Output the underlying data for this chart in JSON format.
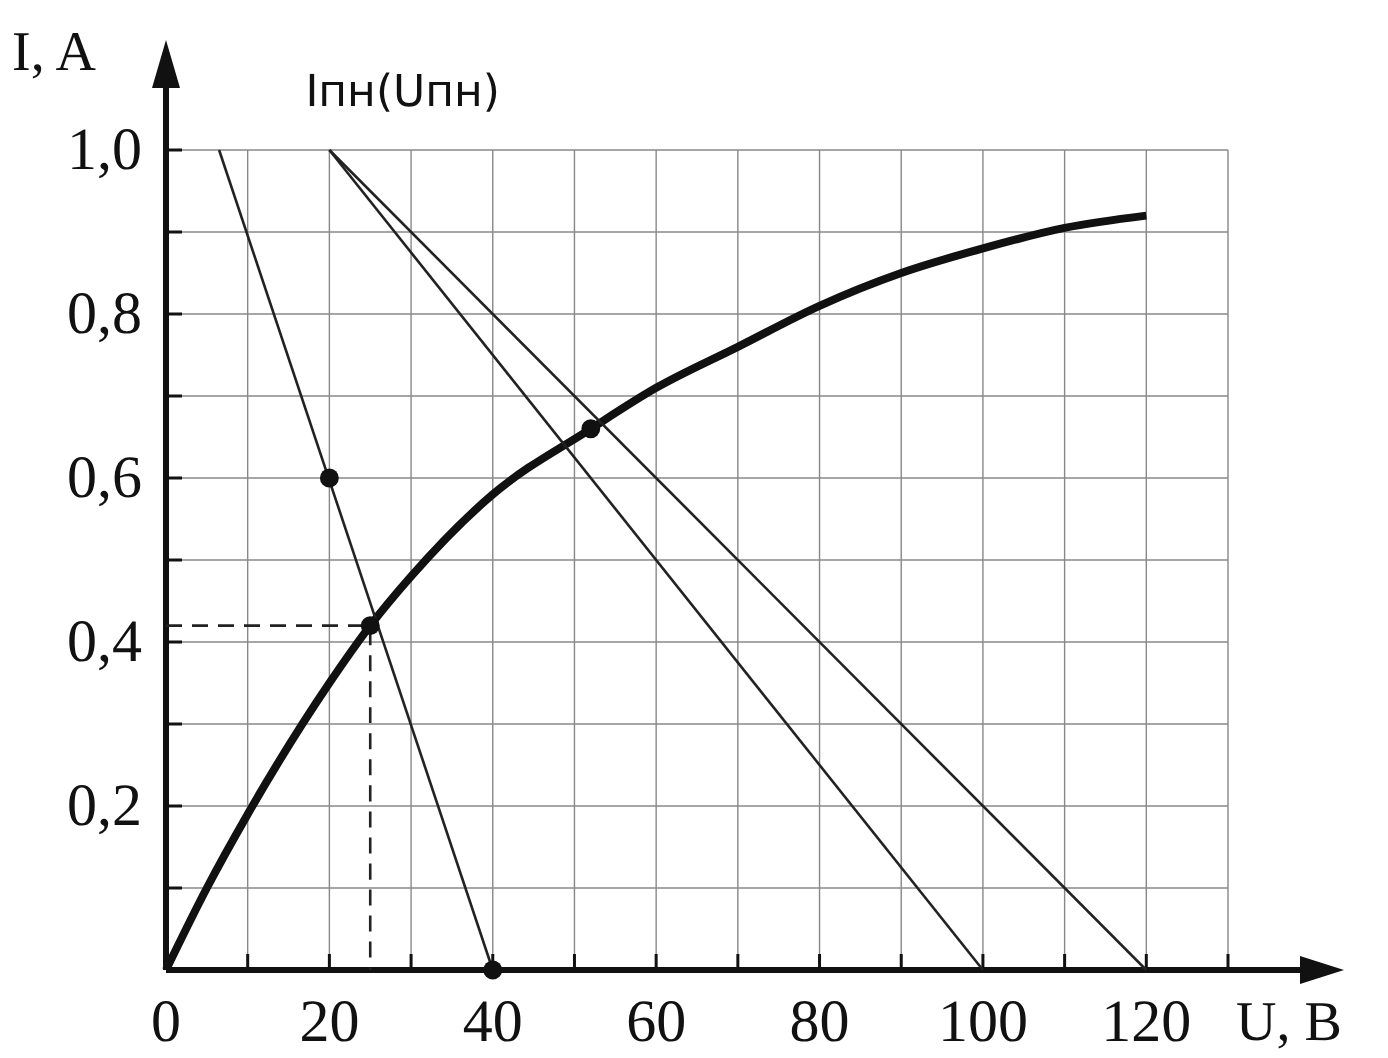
{
  "chart_data": {
    "type": "line",
    "xlabel": "U, B",
    "ylabel": "I, A",
    "xlim": [
      0,
      130
    ],
    "ylim": [
      0,
      1.0
    ],
    "xticks": [
      0,
      {
        "value": 10,
        "label": null
      },
      20,
      {
        "value": 30,
        "label": null
      },
      40,
      {
        "value": 50,
        "label": null
      },
      60,
      {
        "value": 70,
        "label": null
      },
      80,
      {
        "value": 90,
        "label": null
      },
      100,
      {
        "value": 110,
        "label": null
      },
      120,
      {
        "value": 130,
        "label": null
      }
    ],
    "yticks": [
      {
        "value": 0.1,
        "label": null
      },
      {
        "value": 0.2,
        "label": "0,2"
      },
      {
        "value": 0.3,
        "label": null
      },
      {
        "value": 0.4,
        "label": "0,4"
      },
      {
        "value": 0.5,
        "label": null
      },
      {
        "value": 0.6,
        "label": "0,6"
      },
      {
        "value": 0.7,
        "label": null
      },
      {
        "value": 0.8,
        "label": "0,8"
      },
      {
        "value": 0.9,
        "label": null
      },
      {
        "value": 1.0,
        "label": "1,0"
      }
    ],
    "grid": true,
    "line_style": "solid",
    "annotations": [
      {
        "text": "Iпн(Uпн)",
        "x": 20,
        "y": 1.0
      }
    ],
    "series": [
      {
        "type": "line",
        "color": "#111111",
        "x": [
          0,
          5,
          10,
          20,
          25,
          30,
          40,
          52,
          60,
          70,
          80,
          90,
          100,
          110,
          120
        ],
        "values": [
          0,
          0.1,
          0.19,
          0.35,
          0.42,
          0.48,
          0.58,
          0.66,
          0.71,
          0.76,
          0.81,
          0.85,
          0.88,
          0.905,
          0.92
        ]
      },
      {
        "type": "line",
        "color": "#222222",
        "x": [
          6.5,
          40
        ],
        "values": [
          1.0,
          0
        ]
      },
      {
        "type": "line",
        "color": "#222222",
        "x": [
          20,
          100
        ],
        "values": [
          1.0,
          0
        ]
      },
      {
        "type": "line",
        "color": "#222222",
        "x": [
          20,
          120
        ],
        "values": [
          1.0,
          0
        ]
      },
      {
        "type": "line",
        "color": "#222222",
        "line_style": "dashed",
        "x": [
          0,
          25,
          25
        ],
        "values": [
          0.42,
          0.42,
          0
        ]
      },
      {
        "type": "scatter",
        "color": "#111111",
        "marker": "circle",
        "x": [
          20,
          25,
          40,
          52
        ],
        "values": [
          0.6,
          0.42,
          0,
          0.66
        ]
      }
    ]
  }
}
